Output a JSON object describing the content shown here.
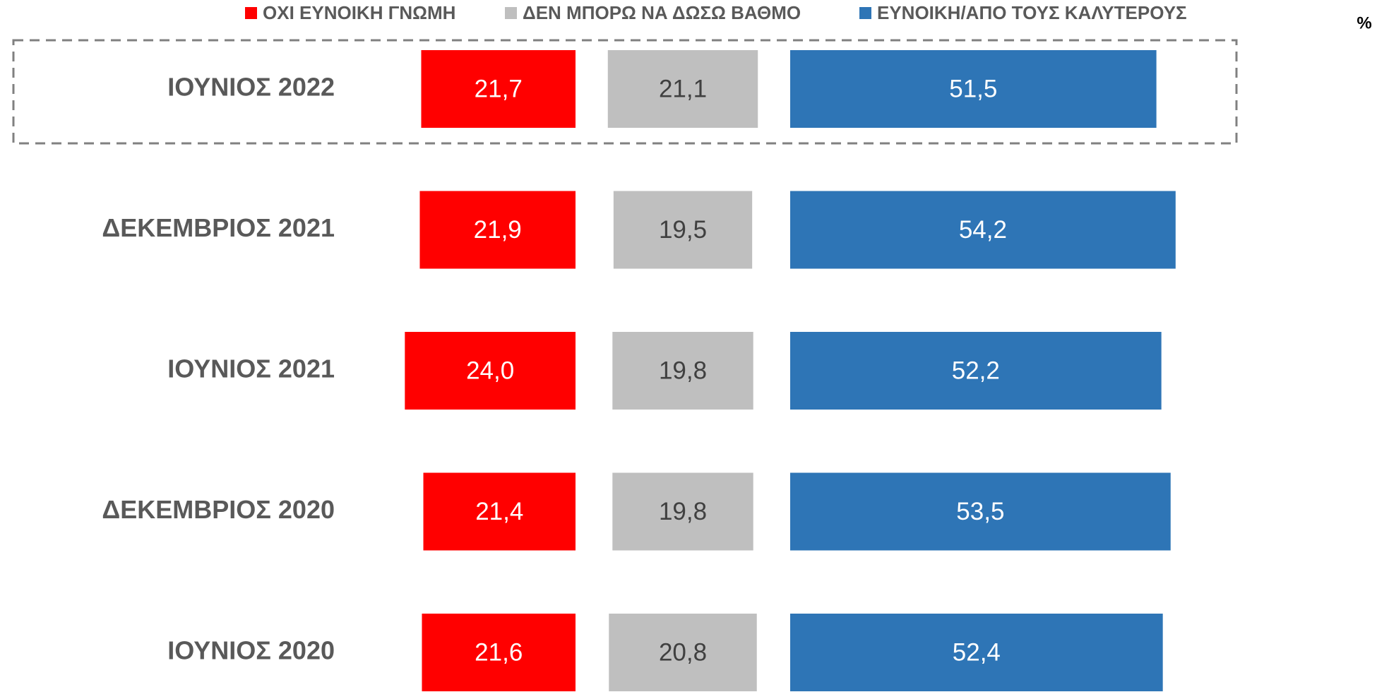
{
  "chart_data": {
    "type": "bar",
    "orientation": "horizontal",
    "unit_label": "%",
    "categories": [
      "ΙΟΥΝΙΟΣ 2022",
      "ΔΕΚΕΜΒΡΙΟΣ 2021",
      "ΙΟΥΝΙΟΣ 2021",
      "ΔΕΚΕΜΒΡΙΟΣ 2020",
      "ΙΟΥΝΙΟΣ 2020"
    ],
    "series": [
      {
        "name": "ΟΧΙ ΕΥΝΟΙΚΗ ΓΝΩΜΗ",
        "color": "#ff0000",
        "values": [
          21.7,
          21.9,
          24.0,
          21.4,
          21.6
        ],
        "value_labels": [
          "21,7",
          "21,9",
          "24,0",
          "21,4",
          "21,6"
        ]
      },
      {
        "name": "ΔΕΝ ΜΠΟΡΩ ΝΑ ΔΩΣΩ ΒΑΘΜΟ",
        "color": "#bfbfbf",
        "values": [
          21.1,
          19.5,
          19.8,
          19.8,
          20.8
        ],
        "value_labels": [
          "21,1",
          "19,5",
          "19,8",
          "19,8",
          "20,8"
        ]
      },
      {
        "name": "ΕΥΝΟΙΚΗ/ΑΠΟ ΤΟΥΣ ΚΑΛΥΤΕΡΟΥΣ",
        "color": "#2e75b6",
        "values": [
          51.5,
          54.2,
          52.2,
          53.5,
          52.4
        ],
        "value_labels": [
          "51,5",
          "54,2",
          "52,2",
          "53,5",
          "52,4"
        ]
      }
    ],
    "legend": "top"
  }
}
